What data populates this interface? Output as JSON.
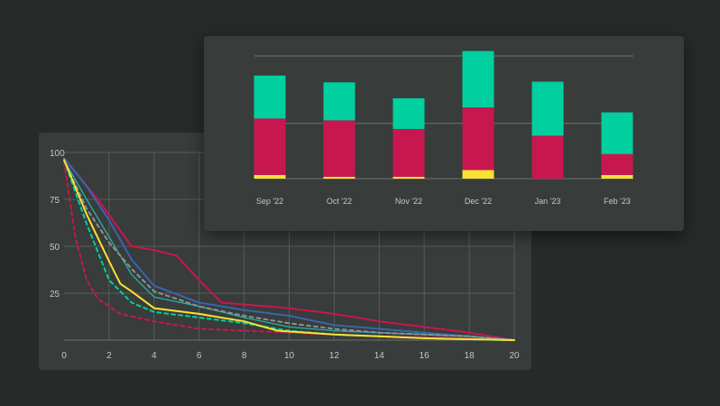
{
  "colors": {
    "background": "#262a29",
    "card": "#383c3b",
    "grid": "#585d5b",
    "axis_text": "#c4c8c6",
    "crimson": "#c8174f",
    "teal": "#00cf9f",
    "yellow": "#f9e233",
    "blue": "#3a64ad",
    "light_teal": "#24b4a8",
    "gray": "#8d9190"
  },
  "chart_data": [
    {
      "type": "line",
      "title": "",
      "xlabel": "",
      "ylabel": "",
      "xlim": [
        0,
        20
      ],
      "ylim": [
        0,
        100
      ],
      "x_ticks": [
        0,
        2,
        4,
        6,
        8,
        10,
        12,
        14,
        16,
        18,
        20
      ],
      "y_ticks": [
        25,
        50,
        75,
        100
      ],
      "grid": true,
      "series": [
        {
          "name": "crimson-solid",
          "color": "#c8174f",
          "dashed": false,
          "x": [
            0,
            1.5,
            3,
            4,
            5,
            6,
            7,
            8,
            10,
            12,
            14,
            16,
            18,
            20
          ],
          "y": [
            97,
            75,
            50,
            48,
            45,
            32,
            20,
            19,
            17,
            14,
            10,
            7,
            4,
            0
          ]
        },
        {
          "name": "crimson-dashed",
          "color": "#c8174f",
          "dashed": true,
          "x": [
            0,
            0.5,
            1,
            1.5,
            2.5,
            4,
            6,
            8,
            10,
            14,
            18,
            20
          ],
          "y": [
            95,
            55,
            32,
            22,
            14,
            10,
            6,
            5,
            4,
            2,
            1,
            0
          ]
        },
        {
          "name": "blue-solid",
          "color": "#3a64ad",
          "dashed": false,
          "x": [
            0,
            1,
            2,
            3,
            4,
            6,
            8,
            10,
            12,
            14,
            16,
            18,
            20
          ],
          "y": [
            97,
            82,
            64,
            43,
            29,
            20,
            16,
            13,
            8,
            6,
            4,
            2,
            0
          ]
        },
        {
          "name": "teal-solid",
          "color": "#24b4a8",
          "dashed": false,
          "x": [
            0,
            1,
            2,
            3,
            4,
            6,
            8,
            10,
            12,
            14,
            16,
            18,
            20
          ],
          "y": [
            96,
            75,
            55,
            35,
            23,
            18,
            12,
            7,
            5,
            4,
            3,
            2,
            0
          ]
        },
        {
          "name": "gray-dashed",
          "color": "#8d9190",
          "dashed": true,
          "x": [
            0,
            1,
            2,
            3,
            4,
            6,
            8,
            10,
            12,
            14,
            16,
            18,
            20
          ],
          "y": [
            96,
            70,
            52,
            38,
            26,
            18,
            13,
            9,
            6,
            4,
            3,
            2,
            0
          ]
        },
        {
          "name": "teal-dashed",
          "color": "#00cf9f",
          "dashed": true,
          "x": [
            0,
            1,
            2,
            3,
            4,
            6,
            8,
            10,
            12,
            14,
            16,
            18,
            20
          ],
          "y": [
            96,
            62,
            32,
            20,
            15,
            12,
            9,
            5,
            3,
            2,
            1,
            0.5,
            0
          ]
        },
        {
          "name": "yellow-solid",
          "color": "#f9e233",
          "dashed": false,
          "x": [
            0,
            1,
            2,
            2.5,
            3,
            4,
            6,
            8,
            9.5,
            12,
            14,
            16,
            18,
            20
          ],
          "y": [
            96,
            67,
            42,
            30,
            26,
            17,
            14,
            10,
            5,
            3,
            2,
            1,
            0.5,
            0
          ]
        }
      ]
    },
    {
      "type": "bar",
      "stacked": true,
      "title": "",
      "xlabel": "",
      "ylabel": "",
      "ylim": [
        0,
        100
      ],
      "gridlines": [
        0,
        45,
        100
      ],
      "categories": [
        "Sep '22",
        "Oct '22",
        "Nov '22",
        "Dec '22",
        "Jan '23",
        "Feb '23"
      ],
      "series": [
        {
          "name": "yellow",
          "color": "#f9e233",
          "values": [
            3,
            1.5,
            1.5,
            7,
            0,
            3
          ]
        },
        {
          "name": "crimson",
          "color": "#c8174f",
          "values": [
            46,
            46,
            39,
            51,
            35,
            17
          ]
        },
        {
          "name": "teal",
          "color": "#00cf9f",
          "values": [
            35,
            31,
            25,
            46,
            44,
            34
          ]
        }
      ]
    }
  ]
}
